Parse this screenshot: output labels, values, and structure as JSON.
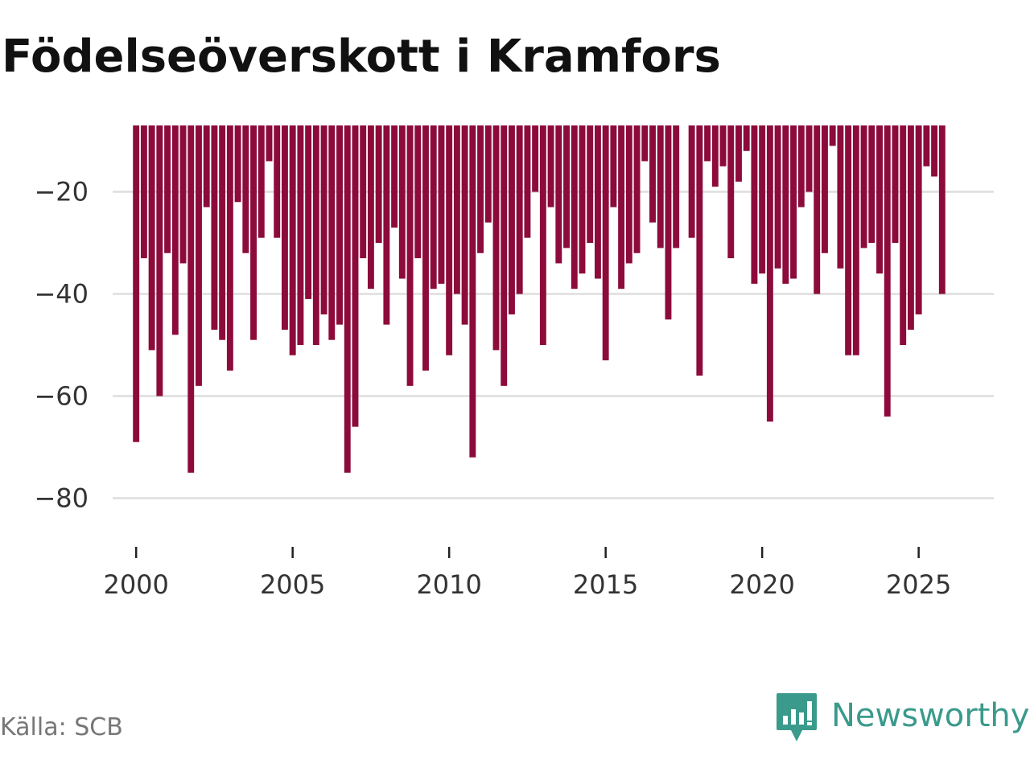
{
  "title": "Födelseöverskott i Kramfors",
  "source": "Källa: SCB",
  "brand": {
    "name": "Newsworthy",
    "icon": "newsworthy-logo-icon",
    "color": "#3a9a8c"
  },
  "chart_data": {
    "type": "bar",
    "title": "Födelseöverskott i Kramfors",
    "xlabel": "",
    "ylabel": "",
    "frequency": "quarterly",
    "bar_color": "#8c0b3a",
    "grid_color": "#dddddd",
    "grid": true,
    "xlim": [
      1999.25,
      2027.4
    ],
    "ylim": [
      -87,
      -7
    ],
    "baseline": -7,
    "xticks": [
      2000,
      2005,
      2010,
      2015,
      2020,
      2025
    ],
    "xtick_labels": [
      "2000",
      "2005",
      "2010",
      "2015",
      "2020",
      "2025"
    ],
    "yticks": [
      -20,
      -40,
      -60,
      -80
    ],
    "ytick_labels": [
      "−20",
      "−40",
      "−60",
      "−80"
    ],
    "start_year": 2000,
    "start_quarter": 1,
    "x": [
      "2000 Q1",
      "2000 Q2",
      "2000 Q3",
      "2000 Q4",
      "2001 Q1",
      "2001 Q2",
      "2001 Q3",
      "2001 Q4",
      "2002 Q1",
      "2002 Q2",
      "2002 Q3",
      "2002 Q4",
      "2003 Q1",
      "2003 Q2",
      "2003 Q3",
      "2003 Q4",
      "2004 Q1",
      "2004 Q2",
      "2004 Q3",
      "2004 Q4",
      "2005 Q1",
      "2005 Q2",
      "2005 Q3",
      "2005 Q4",
      "2006 Q1",
      "2006 Q2",
      "2006 Q3",
      "2006 Q4",
      "2007 Q1",
      "2007 Q2",
      "2007 Q3",
      "2007 Q4",
      "2008 Q1",
      "2008 Q2",
      "2008 Q3",
      "2008 Q4",
      "2009 Q1",
      "2009 Q2",
      "2009 Q3",
      "2009 Q4",
      "2010 Q1",
      "2010 Q2",
      "2010 Q3",
      "2010 Q4",
      "2011 Q1",
      "2011 Q2",
      "2011 Q3",
      "2011 Q4",
      "2012 Q1",
      "2012 Q2",
      "2012 Q3",
      "2012 Q4",
      "2013 Q1",
      "2013 Q2",
      "2013 Q3",
      "2013 Q4",
      "2014 Q1",
      "2014 Q2",
      "2014 Q3",
      "2014 Q4",
      "2015 Q1",
      "2015 Q2",
      "2015 Q3",
      "2015 Q4",
      "2016 Q1",
      "2016 Q2",
      "2016 Q3",
      "2016 Q4",
      "2017 Q1",
      "2017 Q2",
      "2017 Q3",
      "2017 Q4",
      "2018 Q1",
      "2018 Q2",
      "2018 Q3",
      "2018 Q4",
      "2019 Q1",
      "2019 Q2",
      "2019 Q3",
      "2019 Q4",
      "2020 Q1",
      "2020 Q2",
      "2020 Q3",
      "2020 Q4",
      "2021 Q1",
      "2021 Q2",
      "2021 Q3",
      "2021 Q4",
      "2022 Q1",
      "2022 Q2",
      "2022 Q3",
      "2022 Q4",
      "2023 Q1",
      "2023 Q2",
      "2023 Q3",
      "2023 Q4",
      "2024 Q1",
      "2024 Q2",
      "2024 Q3",
      "2024 Q4",
      "2025 Q1",
      "2025 Q2",
      "2025 Q3",
      "2025 Q4",
      "2026 Q1"
    ],
    "values": [
      -69,
      -33,
      -51,
      -60,
      -32,
      -48,
      -34,
      -75,
      -58,
      -23,
      -47,
      -49,
      -55,
      -22,
      -32,
      -49,
      -29,
      -14,
      -29,
      -47,
      -52,
      -50,
      -41,
      -50,
      -44,
      -49,
      -46,
      -75,
      -66,
      -33,
      -39,
      -30,
      -46,
      -27,
      -37,
      -58,
      -33,
      -55,
      -39,
      -38,
      -52,
      -40,
      -46,
      -72,
      -32,
      -26,
      -51,
      -58,
      -44,
      -40,
      -29,
      -20,
      -50,
      -23,
      -34,
      -31,
      -39,
      -36,
      -30,
      -37,
      -53,
      -23,
      -39,
      -34,
      -32,
      -14,
      -26,
      -31,
      -45,
      -31,
      null,
      -29,
      -56,
      -14,
      -19,
      -15,
      -33,
      -18,
      -12,
      -38,
      -36,
      -65,
      -35,
      -38,
      -37,
      -23,
      -20,
      -40,
      -32,
      -11,
      -35,
      -52,
      -52,
      -31,
      -30,
      -36,
      -64,
      -30,
      -50,
      -47,
      -44,
      -15,
      -17,
      -40,
      null
    ]
  }
}
